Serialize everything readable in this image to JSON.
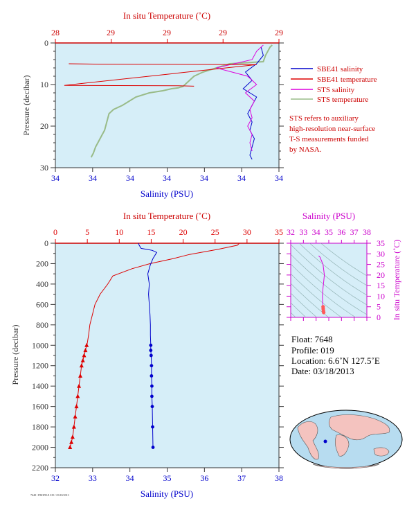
{
  "colors": {
    "plot_bg": "#d6eef8",
    "temperature": "#dd0000",
    "salinity": "#0000cc",
    "sts_salinity": "#dd00dd",
    "sts_temperature": "#99bb88",
    "ts_axis": "#cc00cc",
    "pressure_axis": "#333333",
    "note": "#cc0000"
  },
  "top_panel": {
    "top_axis_title": "In situ Temperature (˚C)",
    "top_ticks": [
      "28",
      "29",
      "29",
      "29",
      "29",
      "29"
    ],
    "bottom_axis_title": "Salinity (PSU)",
    "bottom_ticks": [
      "34",
      "34",
      "34",
      "34",
      "34",
      "34",
      "34"
    ],
    "left_axis_title": "Pressure (decibar)",
    "left_ticks": [
      "0",
      "10",
      "20",
      "30"
    ]
  },
  "legend": {
    "items": [
      {
        "label": "SBE41 salinity",
        "color": "#0000cc"
      },
      {
        "label": "SBE41 temperature",
        "color": "#dd0000"
      },
      {
        "label": "STS salinity",
        "color": "#dd00dd"
      },
      {
        "label": "STS temperature",
        "color": "#99bb88"
      }
    ]
  },
  "note": {
    "lines": [
      "STS refers to auxiliary",
      "high-resolution near-surface",
      "T-S measurements funded",
      "by NASA."
    ]
  },
  "main_panel": {
    "top_axis_title": "In situ Temperature (˚C)",
    "top_ticks": [
      "0",
      "5",
      "10",
      "15",
      "20",
      "25",
      "30",
      "35"
    ],
    "bottom_axis_title": "Salinity (PSU)",
    "bottom_ticks": [
      "32",
      "33",
      "34",
      "35",
      "36",
      "37",
      "38"
    ],
    "left_axis_title": "Pressure (decibar)",
    "left_ticks": [
      "0",
      "200",
      "400",
      "600",
      "800",
      "1000",
      "1200",
      "1400",
      "1600",
      "1800",
      "2000",
      "2200"
    ]
  },
  "ts_panel": {
    "top_axis_title": "Salinity (PSU)",
    "top_ticks": [
      "32",
      "33",
      "34",
      "35",
      "36",
      "37",
      "38"
    ],
    "right_axis_title": "In situ Temperature (˚C)",
    "right_ticks": [
      "0",
      "5",
      "10",
      "15",
      "20",
      "25",
      "30",
      "35"
    ]
  },
  "float_info": {
    "float_line": "Float:  7648",
    "profile_line": "Profile:  019",
    "location_line": "Location:  6.6˚N  127.5˚E",
    "date_line": "Date:  03/18/2013"
  },
  "footer": {
    "small_text": "7648 / PROFILE 019 / 03/18/2013"
  },
  "chart_data": [
    {
      "type": "line",
      "title": "",
      "xlabel": "In situ Temperature (˚C)",
      "ylabel": "Pressure (decibar)",
      "ylim": [
        0,
        2200
      ],
      "xlim": [
        0,
        35
      ],
      "grid": false,
      "series": [
        {
          "name": "temperature",
          "x": [
            28.8,
            28.5,
            25.5,
            21.0,
            18.5,
            14.8,
            12.0,
            9.0,
            8.2,
            7.0,
            6.2,
            5.8,
            5.4,
            5.2,
            5.0,
            4.9,
            4.7,
            4.5,
            4.3,
            4.1,
            3.9,
            3.7,
            3.5,
            3.3,
            3.1,
            2.9,
            2.7,
            2.5,
            2.3
          ],
          "y": [
            0,
            20,
            60,
            110,
            150,
            200,
            250,
            320,
            400,
            500,
            600,
            700,
            800,
            900,
            980,
            1000,
            1050,
            1100,
            1150,
            1200,
            1300,
            1400,
            1500,
            1600,
            1700,
            1800,
            1900,
            1950,
            2000
          ]
        },
        {
          "name": "salinity",
          "x": [
            34.23,
            34.25,
            34.3,
            34.6,
            34.72,
            34.62,
            34.55,
            34.48,
            34.52,
            34.5,
            34.52,
            34.54,
            34.55,
            34.55,
            34.56,
            34.56,
            34.57,
            34.58,
            34.58,
            34.59,
            34.59,
            34.6,
            34.61,
            34.62
          ],
          "y": [
            0,
            20,
            50,
            70,
            90,
            150,
            210,
            300,
            400,
            500,
            600,
            700,
            800,
            900,
            1000,
            1050,
            1100,
            1200,
            1300,
            1400,
            1500,
            1600,
            1800,
            2000
          ]
        }
      ]
    },
    {
      "type": "line",
      "title": "",
      "xlabel": "Salinity (PSU)",
      "ylabel": "Pressure (decibar)",
      "ylim": [
        0,
        30
      ],
      "grid": false,
      "series": [
        {
          "name": "SBE41 salinity",
          "x": [
            0.92,
            0.93,
            0.9,
            0.85,
            0.88,
            0.84,
            0.9,
            0.88,
            0.86,
            0.88,
            0.87,
            0.89,
            0.88,
            0.87,
            0.88
          ],
          "y": [
            1,
            3,
            5,
            7,
            9,
            11,
            13,
            15,
            17,
            19,
            21,
            23,
            25,
            27,
            28
          ]
        },
        {
          "name": "SBE41 temperature",
          "x": [
            0.06,
            0.2,
            0.9,
            0.04,
            0.55,
            0.62
          ],
          "y": [
            5,
            5.1,
            5.2,
            10.2,
            10.3,
            10.4
          ]
        },
        {
          "name": "STS salinity",
          "x": [
            0.93,
            0.9,
            0.88,
            0.72,
            0.86,
            0.9,
            0.85,
            0.89,
            0.87,
            0.88,
            0.86,
            0.88,
            0.87,
            0.88
          ],
          "y": [
            0.5,
            2,
            4,
            6,
            8,
            10,
            12,
            14,
            16,
            18,
            20,
            22,
            24,
            26
          ]
        },
        {
          "name": "STS temperature",
          "x": [
            0.97,
            0.96,
            0.94,
            0.93,
            0.78,
            0.72,
            0.66,
            0.62,
            0.6,
            0.58,
            0.57,
            0.56,
            0.55,
            0.52,
            0.48,
            0.42,
            0.36,
            0.3,
            0.26,
            0.24,
            0.23,
            0.22,
            0.21,
            0.2,
            0.19,
            0.18,
            0.17,
            0.16
          ],
          "y": [
            0.5,
            1,
            3,
            4.5,
            5,
            6,
            7,
            8,
            9,
            10,
            10.5,
            10.6,
            10.8,
            11,
            11.5,
            12,
            13,
            15,
            16,
            17,
            19,
            21,
            22,
            23,
            24,
            25,
            26.5,
            27.5
          ]
        }
      ]
    },
    {
      "type": "line",
      "title": "",
      "xlabel": "Salinity (PSU)",
      "ylabel": "In situ Temperature (˚C)",
      "xlim": [
        32,
        38
      ],
      "ylim": [
        0,
        35
      ],
      "grid": false,
      "series": [
        {
          "name": "T-S",
          "x": [
            34.2,
            34.3,
            34.55,
            34.65,
            34.6,
            34.55,
            34.5,
            34.52,
            34.55,
            34.56,
            34.58,
            34.6
          ],
          "y": [
            29.0,
            28.5,
            25.0,
            20.0,
            17.0,
            14.0,
            10.0,
            7.0,
            5.0,
            4.0,
            3.0,
            2.3
          ]
        }
      ]
    }
  ]
}
